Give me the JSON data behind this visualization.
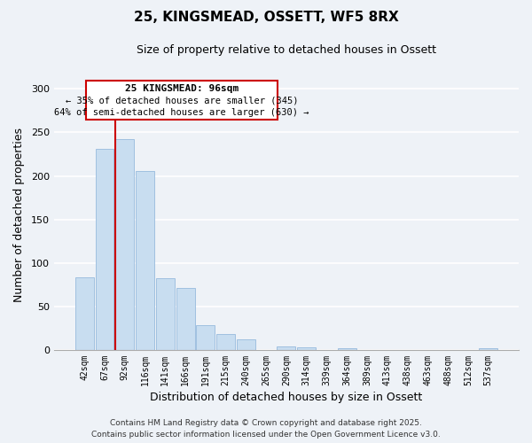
{
  "title": "25, KINGSMEAD, OSSETT, WF5 8RX",
  "subtitle": "Size of property relative to detached houses in Ossett",
  "xlabel": "Distribution of detached houses by size in Ossett",
  "ylabel": "Number of detached properties",
  "categories": [
    "42sqm",
    "67sqm",
    "92sqm",
    "116sqm",
    "141sqm",
    "166sqm",
    "191sqm",
    "215sqm",
    "240sqm",
    "265sqm",
    "290sqm",
    "314sqm",
    "339sqm",
    "364sqm",
    "389sqm",
    "413sqm",
    "438sqm",
    "463sqm",
    "488sqm",
    "512sqm",
    "537sqm"
  ],
  "values": [
    83,
    231,
    242,
    206,
    82,
    71,
    28,
    18,
    12,
    0,
    4,
    3,
    0,
    2,
    0,
    0,
    0,
    0,
    0,
    0,
    2
  ],
  "bar_color": "#c8ddf0",
  "bar_edge_color": "#a0c0e0",
  "vline_color": "#cc0000",
  "vline_x_index": 2,
  "annotation_title": "25 KINGSMEAD: 96sqm",
  "annotation_line1": "← 35% of detached houses are smaller (345)",
  "annotation_line2": "64% of semi-detached houses are larger (630) →",
  "annotation_box_color": "#ffffff",
  "annotation_box_edge": "#cc0000",
  "ylim": [
    0,
    310
  ],
  "yticks": [
    0,
    50,
    100,
    150,
    200,
    250,
    300
  ],
  "footer_line1": "Contains HM Land Registry data © Crown copyright and database right 2025.",
  "footer_line2": "Contains public sector information licensed under the Open Government Licence v3.0.",
  "bg_color": "#eef2f7",
  "plot_bg_color": "#eef2f7",
  "grid_color": "#ffffff"
}
